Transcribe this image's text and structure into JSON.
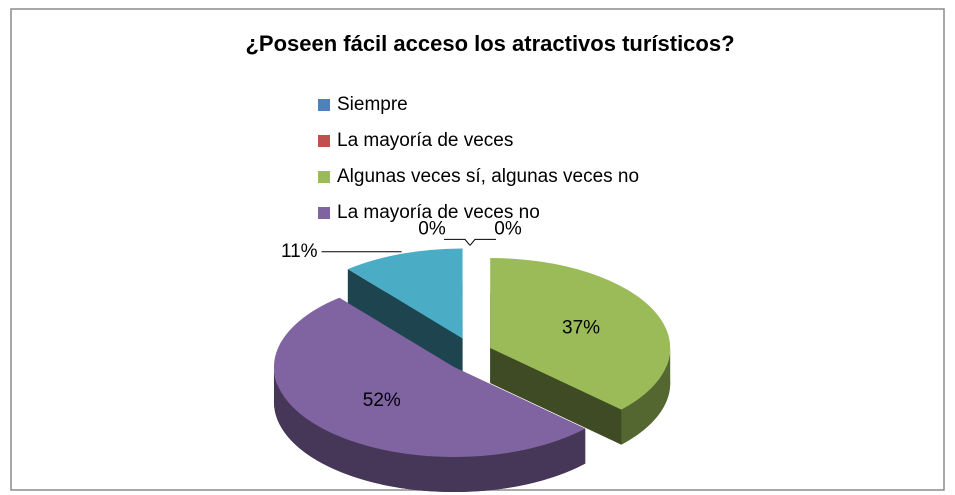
{
  "chart_data": {
    "type": "pie3d",
    "title": "¿Poseen fácil acceso los atractivos turísticos?",
    "categories": [
      "Siempre",
      "La mayoría de veces",
      "Algunas veces sí, algunas veces no",
      "La mayoría de veces no",
      null
    ],
    "values": [
      0,
      0,
      37,
      52,
      11
    ],
    "value_labels": [
      "0%",
      "0%",
      "37%",
      "52%",
      "11%"
    ],
    "colors": [
      "#4f81bd",
      "#c0504d",
      "#9bbb59",
      "#8064a2",
      "#4bacc6"
    ],
    "legend": "top"
  }
}
